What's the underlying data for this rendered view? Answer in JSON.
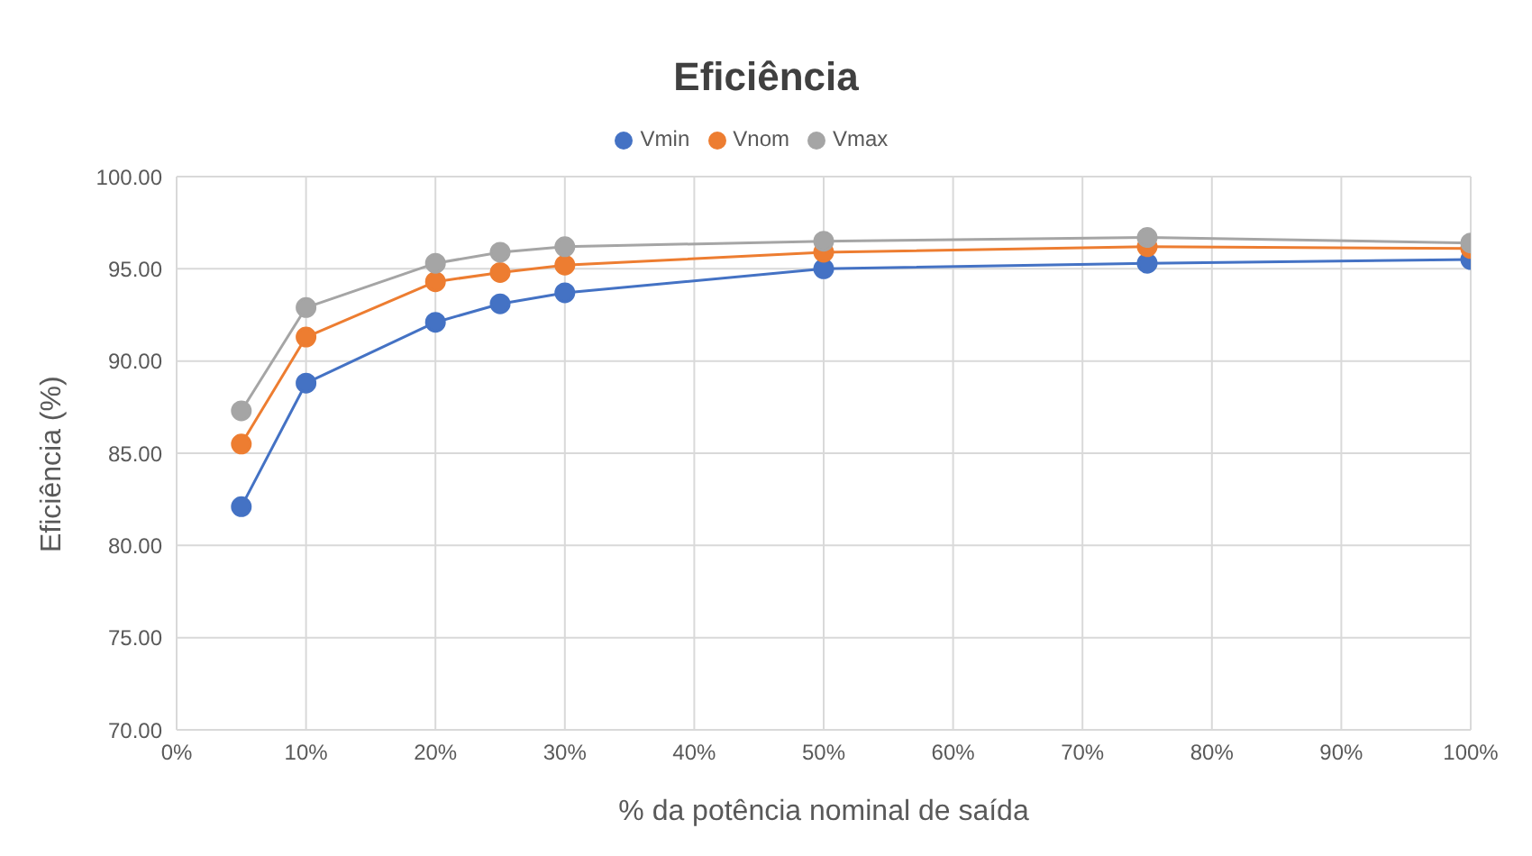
{
  "chart_data": {
    "type": "line",
    "title": "Eficiência",
    "xlabel": "% da potência nominal de saída",
    "ylabel": "Eficiência (%)",
    "x": [
      5,
      10,
      20,
      25,
      30,
      50,
      75,
      100
    ],
    "series": [
      {
        "name": "Vmin",
        "color": "#4472c4",
        "values": [
          82.1,
          88.8,
          92.1,
          93.1,
          93.7,
          95.0,
          95.3,
          95.5
        ]
      },
      {
        "name": "Vnom",
        "color": "#ed7d31",
        "values": [
          85.5,
          91.3,
          94.3,
          94.8,
          95.2,
          95.9,
          96.2,
          96.1
        ]
      },
      {
        "name": "Vmax",
        "color": "#a5a5a5",
        "values": [
          87.3,
          92.9,
          95.3,
          95.9,
          96.2,
          96.5,
          96.7,
          96.4
        ]
      }
    ],
    "xlim": [
      0,
      100
    ],
    "xticks": [
      {
        "value": 0,
        "label": "0%"
      },
      {
        "value": 10,
        "label": "10%"
      },
      {
        "value": 20,
        "label": "20%"
      },
      {
        "value": 30,
        "label": "30%"
      },
      {
        "value": 40,
        "label": "40%"
      },
      {
        "value": 50,
        "label": "50%"
      },
      {
        "value": 60,
        "label": "60%"
      },
      {
        "value": 70,
        "label": "70%"
      },
      {
        "value": 80,
        "label": "80%"
      },
      {
        "value": 90,
        "label": "90%"
      },
      {
        "value": 100,
        "label": "100%"
      }
    ],
    "ylim": [
      70,
      100
    ],
    "yticks": [
      {
        "value": 70,
        "label": "70.00"
      },
      {
        "value": 75,
        "label": "75.00"
      },
      {
        "value": 80,
        "label": "80.00"
      },
      {
        "value": 85,
        "label": "85.00"
      },
      {
        "value": 90,
        "label": "90.00"
      },
      {
        "value": 95,
        "label": "95.00"
      },
      {
        "value": 100,
        "label": "100.00"
      }
    ],
    "grid": true,
    "legend": "top",
    "marker": "circle",
    "line_style": "solid"
  }
}
